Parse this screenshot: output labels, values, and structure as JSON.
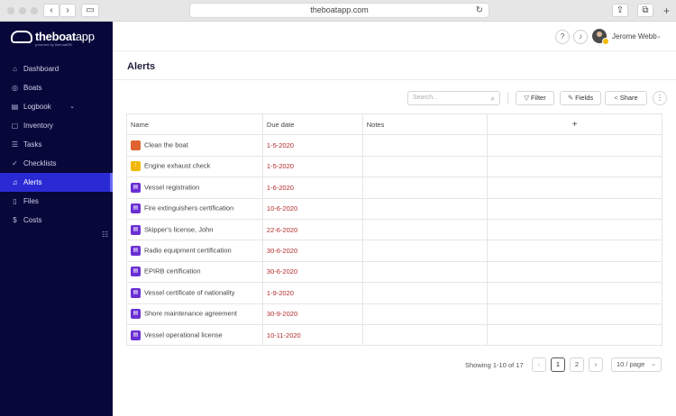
{
  "browser": {
    "url": "theboatapp.com",
    "back_icon": "‹",
    "forward_icon": "›",
    "sidebar_icon": "▭",
    "reload_icon": "↻",
    "share_icon": "⇪",
    "tabs_icon": "⧉",
    "newtab_icon": "+"
  },
  "logo": {
    "brand_bold1": "the",
    "brand_bold2": "boat",
    "brand_thin": "app",
    "sub": "powered by theboatDB"
  },
  "sidebar": {
    "items": [
      {
        "label": "Dashboard",
        "icon": "⌂"
      },
      {
        "label": "Boats",
        "icon": "◎"
      },
      {
        "label": "Logbook",
        "icon": "▤",
        "chevron": "⌄"
      },
      {
        "label": "Inventory",
        "icon": "▢"
      },
      {
        "label": "Tasks",
        "icon": "☰"
      },
      {
        "label": "Checklists",
        "icon": "✓"
      },
      {
        "label": "Alerts",
        "icon": "♫"
      },
      {
        "label": "Files",
        "icon": "▯"
      },
      {
        "label": "Costs",
        "icon": "$"
      }
    ],
    "collapse_icon": "☷"
  },
  "topbar": {
    "help_icon": "?",
    "bell_icon": "♪",
    "user_name": "Jerome Webb",
    "user_chevron": "⌄"
  },
  "page": {
    "title": "Alerts"
  },
  "toolbar": {
    "search_placeholder": "Search...",
    "search_icon": "⌕",
    "filter_label": "Filter",
    "filter_icon": "▽",
    "fields_label": "Fields",
    "fields_icon": "✎",
    "share_label": "Share",
    "share_icon": "<",
    "more_icon": "⋮"
  },
  "table": {
    "headers": {
      "name": "Name",
      "due": "Due date",
      "notes": "Notes",
      "add": "+"
    },
    "rows": [
      {
        "name": "Clean the boat",
        "due": "1-5-2020",
        "icon_color": "#e0622f",
        "icon_glyph": ""
      },
      {
        "name": "Engine exhaust check",
        "due": "1-5-2020",
        "icon_color": "#f2b705",
        "icon_glyph": "⁞"
      },
      {
        "name": "Vessel registration",
        "due": "1-6-2020",
        "icon_color": "#6a2fd3",
        "icon_glyph": "▤"
      },
      {
        "name": "Fire extinguishers certification",
        "due": "10-6-2020",
        "icon_color": "#6a2fd3",
        "icon_glyph": "▤"
      },
      {
        "name": "Skipper's license, John",
        "due": "22-6-2020",
        "icon_color": "#6a2fd3",
        "icon_glyph": "▤"
      },
      {
        "name": "Radio equipment certification",
        "due": "30-6-2020",
        "icon_color": "#6a2fd3",
        "icon_glyph": "▤"
      },
      {
        "name": "EPIRB certification",
        "due": "30-6-2020",
        "icon_color": "#6a2fd3",
        "icon_glyph": "▤"
      },
      {
        "name": "Vessel certificate of nationality",
        "due": "1-9-2020",
        "icon_color": "#6a2fd3",
        "icon_glyph": "▤"
      },
      {
        "name": "Shore maintenance agreement",
        "due": "30-9-2020",
        "icon_color": "#6a2fd3",
        "icon_glyph": "▤"
      },
      {
        "name": "Vessel operational license",
        "due": "10-11-2020",
        "icon_color": "#6a2fd3",
        "icon_glyph": "▤"
      }
    ]
  },
  "pagination": {
    "showing": "Showing 1-10 of 17",
    "prev": "‹",
    "page1": "1",
    "page2": "2",
    "next": "›",
    "per_page": "10 / page",
    "per_page_chevron": "⌄"
  }
}
